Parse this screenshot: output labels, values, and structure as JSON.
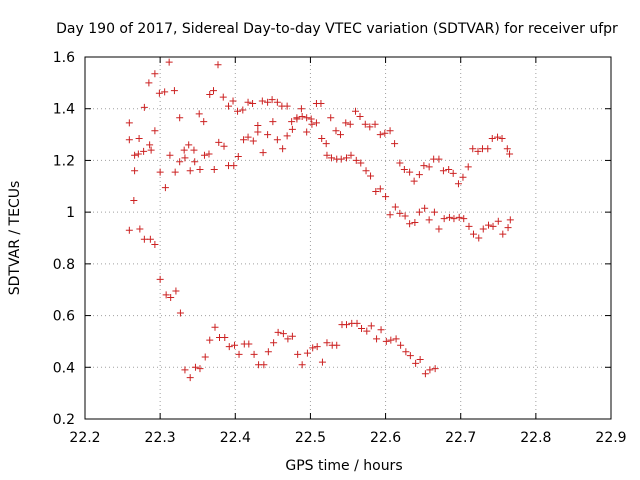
{
  "chart_data": {
    "type": "scatter",
    "title": "Day 190 of 2017, Sidereal Day-to-day VTEC variation (SDTVAR) for receiver ufpr",
    "xlabel": "GPS time / hours",
    "ylabel": "SDTVAR / TECUs",
    "xlim": [
      22.2,
      22.9
    ],
    "ylim": [
      0.2,
      1.6
    ],
    "x_ticks": [
      "22.2",
      "22.3",
      "22.4",
      "22.5",
      "22.6",
      "22.7",
      "22.8",
      "22.9"
    ],
    "y_ticks": [
      "0.2",
      "0.4",
      "0.6",
      "0.8",
      "1",
      "1.2",
      "1.4",
      "1.6"
    ],
    "grid": true,
    "marker": "+",
    "color": "#cc2222",
    "series": [
      {
        "name": "SDTVAR",
        "points": [
          [
            22.259,
            1.345
          ],
          [
            22.259,
            1.28
          ],
          [
            22.259,
            0.93
          ],
          [
            22.265,
            1.045
          ],
          [
            22.266,
            1.16
          ],
          [
            22.266,
            1.22
          ],
          [
            22.271,
            1.225
          ],
          [
            22.272,
            1.285
          ],
          [
            22.273,
            0.935
          ],
          [
            22.278,
            1.235
          ],
          [
            22.279,
            1.405
          ],
          [
            22.279,
            0.895
          ],
          [
            22.285,
            1.5
          ],
          [
            22.286,
            1.26
          ],
          [
            22.287,
            0.895
          ],
          [
            22.288,
            1.24
          ],
          [
            22.293,
            1.535
          ],
          [
            22.293,
            0.875
          ],
          [
            22.293,
            1.315
          ],
          [
            22.299,
            1.46
          ],
          [
            22.3,
            0.74
          ],
          [
            22.3,
            1.155
          ],
          [
            22.306,
            1.465
          ],
          [
            22.307,
            1.095
          ],
          [
            22.308,
            0.68
          ],
          [
            22.312,
            1.58
          ],
          [
            22.313,
            1.22
          ],
          [
            22.314,
            0.67
          ],
          [
            22.319,
            1.47
          ],
          [
            22.32,
            1.155
          ],
          [
            22.321,
            0.695
          ],
          [
            22.326,
            1.195
          ],
          [
            22.326,
            1.365
          ],
          [
            22.327,
            0.61
          ],
          [
            22.332,
            1.24
          ],
          [
            22.333,
            1.21
          ],
          [
            22.333,
            0.39
          ],
          [
            22.338,
            1.26
          ],
          [
            22.34,
            0.36
          ],
          [
            22.34,
            1.16
          ],
          [
            22.345,
            1.24
          ],
          [
            22.346,
            1.195
          ],
          [
            22.347,
            0.4
          ],
          [
            22.352,
            1.38
          ],
          [
            22.353,
            0.395
          ],
          [
            22.353,
            1.165
          ],
          [
            22.358,
            1.35
          ],
          [
            22.359,
            1.22
          ],
          [
            22.36,
            0.44
          ],
          [
            22.365,
            1.225
          ],
          [
            22.366,
            1.455
          ],
          [
            22.366,
            0.505
          ],
          [
            22.371,
            1.47
          ],
          [
            22.372,
            1.165
          ],
          [
            22.373,
            0.555
          ],
          [
            22.377,
            1.57
          ],
          [
            22.378,
            1.27
          ],
          [
            22.379,
            0.515
          ],
          [
            22.384,
            1.445
          ],
          [
            22.385,
            1.255
          ],
          [
            22.386,
            0.515
          ],
          [
            22.391,
            1.41
          ],
          [
            22.391,
            1.18
          ],
          [
            22.392,
            0.48
          ],
          [
            22.397,
            1.43
          ],
          [
            22.398,
            1.18
          ],
          [
            22.399,
            0.485
          ],
          [
            22.403,
            1.39
          ],
          [
            22.404,
            1.215
          ],
          [
            22.405,
            0.45
          ],
          [
            22.41,
            1.395
          ],
          [
            22.411,
            1.28
          ],
          [
            22.412,
            0.49
          ],
          [
            22.417,
            1.425
          ],
          [
            22.417,
            1.29
          ],
          [
            22.418,
            0.49
          ],
          [
            22.423,
            1.42
          ],
          [
            22.424,
            1.275
          ],
          [
            22.425,
            0.45
          ],
          [
            22.43,
            1.335
          ],
          [
            22.43,
            1.31
          ],
          [
            22.431,
            0.41
          ],
          [
            22.436,
            1.43
          ],
          [
            22.437,
            1.23
          ],
          [
            22.438,
            0.41
          ],
          [
            22.443,
            1.425
          ],
          [
            22.443,
            1.3
          ],
          [
            22.444,
            0.46
          ],
          [
            22.449,
            1.435
          ],
          [
            22.45,
            1.35
          ],
          [
            22.451,
            0.495
          ],
          [
            22.456,
            1.425
          ],
          [
            22.456,
            1.28
          ],
          [
            22.457,
            0.535
          ],
          [
            22.462,
            1.41
          ],
          [
            22.463,
            1.245
          ],
          [
            22.464,
            0.53
          ],
          [
            22.469,
            1.41
          ],
          [
            22.469,
            1.295
          ],
          [
            22.47,
            0.51
          ],
          [
            22.475,
            1.35
          ],
          [
            22.476,
            0.52
          ],
          [
            22.476,
            1.32
          ],
          [
            22.482,
            1.36
          ],
          [
            22.482,
            1.365
          ],
          [
            22.483,
            0.45
          ],
          [
            22.488,
            1.4
          ],
          [
            22.489,
            1.37
          ],
          [
            22.489,
            0.41
          ],
          [
            22.495,
            1.365
          ],
          [
            22.495,
            1.31
          ],
          [
            22.496,
            0.455
          ],
          [
            22.501,
            1.36
          ],
          [
            22.502,
            1.34
          ],
          [
            22.503,
            0.475
          ],
          [
            22.508,
            1.345
          ],
          [
            22.508,
            1.42
          ],
          [
            22.509,
            0.48
          ],
          [
            22.514,
            1.42
          ],
          [
            22.515,
            1.285
          ],
          [
            22.516,
            0.42
          ],
          [
            22.521,
            1.265
          ],
          [
            22.522,
            1.22
          ],
          [
            22.522,
            0.495
          ],
          [
            22.527,
            1.365
          ],
          [
            22.528,
            1.21
          ],
          [
            22.529,
            0.485
          ],
          [
            22.534,
            1.315
          ],
          [
            22.535,
            1.205
          ],
          [
            22.535,
            0.485
          ],
          [
            22.54,
            1.3
          ],
          [
            22.541,
            1.205
          ],
          [
            22.542,
            0.565
          ],
          [
            22.547,
            1.345
          ],
          [
            22.548,
            1.21
          ],
          [
            22.548,
            0.565
          ],
          [
            22.553,
            1.34
          ],
          [
            22.554,
            1.22
          ],
          [
            22.555,
            0.57
          ],
          [
            22.56,
            1.39
          ],
          [
            22.561,
            1.2
          ],
          [
            22.562,
            0.57
          ],
          [
            22.566,
            1.37
          ],
          [
            22.567,
            1.19
          ],
          [
            22.568,
            0.55
          ],
          [
            22.573,
            1.34
          ],
          [
            22.574,
            1.16
          ],
          [
            22.575,
            0.54
          ],
          [
            22.579,
            1.33
          ],
          [
            22.58,
            1.14
          ],
          [
            22.581,
            0.56
          ],
          [
            22.586,
            1.34
          ],
          [
            22.587,
            1.08
          ],
          [
            22.588,
            0.51
          ],
          [
            22.593,
            1.3
          ],
          [
            22.593,
            1.09
          ],
          [
            22.594,
            0.545
          ],
          [
            22.599,
            1.305
          ],
          [
            22.6,
            1.06
          ],
          [
            22.601,
            0.5
          ],
          [
            22.606,
            1.315
          ],
          [
            22.606,
            0.99
          ],
          [
            22.607,
            0.505
          ],
          [
            22.612,
            1.265
          ],
          [
            22.613,
            1.02
          ],
          [
            22.614,
            0.51
          ],
          [
            22.619,
            1.19
          ],
          [
            22.619,
            0.995
          ],
          [
            22.62,
            0.485
          ],
          [
            22.625,
            1.165
          ],
          [
            22.626,
            0.985
          ],
          [
            22.627,
            0.46
          ],
          [
            22.632,
            1.155
          ],
          [
            22.632,
            0.955
          ],
          [
            22.633,
            0.445
          ],
          [
            22.638,
            1.12
          ],
          [
            22.639,
            0.96
          ],
          [
            22.64,
            0.415
          ],
          [
            22.645,
            1.145
          ],
          [
            22.645,
            1.0
          ],
          [
            22.646,
            0.43
          ],
          [
            22.651,
            1.18
          ],
          [
            22.652,
            1.015
          ],
          [
            22.653,
            0.375
          ],
          [
            22.658,
            1.175
          ],
          [
            22.658,
            0.97
          ],
          [
            22.659,
            0.39
          ],
          [
            22.664,
            1.205
          ],
          [
            22.665,
            1.0
          ],
          [
            22.666,
            0.395
          ],
          [
            22.671,
            1.205
          ],
          [
            22.671,
            0.935
          ],
          [
            22.677,
            1.16
          ],
          [
            22.678,
            0.975
          ],
          [
            22.684,
            1.165
          ],
          [
            22.685,
            0.98
          ],
          [
            22.69,
            1.15
          ],
          [
            22.691,
            0.975
          ],
          [
            22.697,
            1.11
          ],
          [
            22.698,
            0.98
          ],
          [
            22.703,
            1.135
          ],
          [
            22.704,
            0.975
          ],
          [
            22.71,
            1.175
          ],
          [
            22.711,
            0.945
          ],
          [
            22.716,
            1.245
          ],
          [
            22.717,
            0.915
          ],
          [
            22.723,
            1.235
          ],
          [
            22.724,
            0.9
          ],
          [
            22.729,
            1.245
          ],
          [
            22.73,
            0.935
          ],
          [
            22.736,
            1.245
          ],
          [
            22.737,
            0.95
          ],
          [
            22.742,
            1.285
          ],
          [
            22.743,
            0.945
          ],
          [
            22.749,
            1.29
          ],
          [
            22.75,
            0.965
          ],
          [
            22.755,
            1.285
          ],
          [
            22.756,
            0.915
          ],
          [
            22.762,
            1.245
          ],
          [
            22.763,
            0.94
          ],
          [
            22.765,
            1.225
          ],
          [
            22.766,
            0.97
          ]
        ]
      }
    ]
  }
}
